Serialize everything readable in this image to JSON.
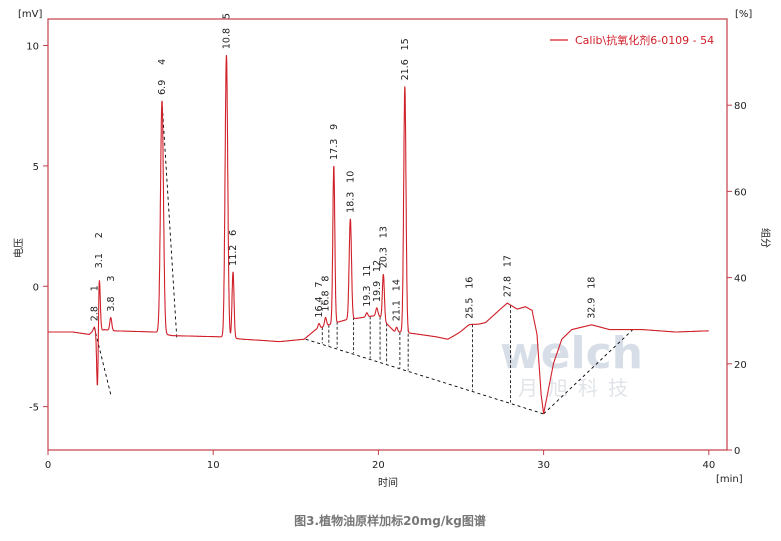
{
  "chart_data": {
    "type": "line",
    "title": "",
    "caption": "图3.植物油原样加标20mg/kg图谱",
    "xlabel": "时间",
    "xunit": "[min]",
    "ylabel": "电压",
    "yunit": "[mV]",
    "y2label": "组分",
    "y2unit": "[%]",
    "xlim": [
      0,
      41.1
    ],
    "ylim": [
      -6.8,
      11.1
    ],
    "y2lim": [
      0,
      100
    ],
    "xticks": [
      0,
      10,
      20,
      30,
      40
    ],
    "yticks": [
      -5,
      0,
      5,
      10
    ],
    "y2ticks": [
      0,
      20,
      40,
      60,
      80
    ],
    "grid": false,
    "legend": {
      "position": "top-right",
      "entries": [
        "Calib\\抗氧化剂6-0109 - 54"
      ]
    },
    "colors": {
      "trace": "#d0202a",
      "axis": "#c0404a",
      "baseline": "#000000"
    },
    "series": [
      {
        "name": "Calib\\抗氧化剂6-0109 - 54",
        "baseline_points": [
          [
            0,
            -1.9
          ],
          [
            1.5,
            -1.9
          ],
          [
            2.5,
            -2.0
          ],
          [
            2.8,
            -1.8
          ],
          [
            2.95,
            -1.9
          ],
          [
            3.4,
            -1.8
          ],
          [
            4,
            -1.85
          ],
          [
            6.5,
            -1.9
          ],
          [
            7.5,
            -2.05
          ],
          [
            10.5,
            -2.1
          ],
          [
            11.8,
            -2.2
          ],
          [
            13,
            -2.25
          ],
          [
            14,
            -2.3
          ],
          [
            15.5,
            -2.2
          ],
          [
            16.2,
            -1.8
          ],
          [
            17.0,
            -1.6
          ],
          [
            18.0,
            -1.4
          ],
          [
            19.0,
            -1.3
          ],
          [
            20.0,
            -1.2
          ],
          [
            21.0,
            -1.9
          ],
          [
            21.4,
            -1.9
          ],
          [
            22.5,
            -2.0
          ],
          [
            23.5,
            -2.1
          ],
          [
            24.2,
            -2.2
          ],
          [
            25.5,
            -1.7
          ],
          [
            26.5,
            -1.5
          ],
          [
            27.3,
            -1.0
          ],
          [
            27.8,
            -0.7
          ],
          [
            28.4,
            -0.95
          ],
          [
            28.9,
            -0.85
          ],
          [
            29.3,
            -1.0
          ],
          [
            29.6,
            -2.0
          ],
          [
            29.85,
            -4.5
          ],
          [
            30.0,
            -5.3
          ],
          [
            30.2,
            -4.6
          ],
          [
            30.6,
            -3.2
          ],
          [
            31.1,
            -2.2
          ],
          [
            31.7,
            -1.8
          ],
          [
            32.9,
            -1.6
          ],
          [
            34,
            -1.8
          ],
          [
            36,
            -1.8
          ],
          [
            38,
            -1.9
          ],
          [
            40,
            -1.85
          ]
        ]
      }
    ],
    "peaks": [
      {
        "no": "1",
        "rt": 2.8,
        "apex": -1.7,
        "show_rt": "2.8"
      },
      {
        "no": "2",
        "rt": 3.1,
        "apex": 0.5,
        "show_rt": "3.1"
      },
      {
        "no": "3",
        "rt": 3.8,
        "apex": -1.3,
        "show_rt": "3.8"
      },
      {
        "no": "4",
        "rt": 6.9,
        "apex": 7.7,
        "show_rt": "6.9"
      },
      {
        "no": "5",
        "rt": 10.8,
        "apex": 9.6,
        "show_rt": "10.8"
      },
      {
        "no": "6",
        "rt": 11.2,
        "apex": 0.6,
        "show_rt": "11.2"
      },
      {
        "no": "7",
        "rt": 16.4,
        "apex": -1.55,
        "show_rt": "16.4"
      },
      {
        "no": "8",
        "rt": 16.8,
        "apex": -1.3,
        "show_rt": "16.8"
      },
      {
        "no": "9",
        "rt": 17.3,
        "apex": 5.0,
        "show_rt": "17.3"
      },
      {
        "no": "10",
        "rt": 18.3,
        "apex": 2.8,
        "show_rt": "18.3"
      },
      {
        "no": "11",
        "rt": 19.3,
        "apex": -1.1,
        "show_rt": "19.3"
      },
      {
        "no": "12",
        "rt": 19.9,
        "apex": -0.9,
        "show_rt": "19.9"
      },
      {
        "no": "13",
        "rt": 20.3,
        "apex": 0.5,
        "show_rt": "20.3"
      },
      {
        "no": "14",
        "rt": 21.1,
        "apex": -1.7,
        "show_rt": "21.1"
      },
      {
        "no": "15",
        "rt": 21.6,
        "apex": 8.3,
        "show_rt": "21.6"
      },
      {
        "no": "16",
        "rt": 25.5,
        "apex": -1.6,
        "show_rt": "25.5"
      },
      {
        "no": "17",
        "rt": 27.8,
        "apex": -0.7,
        "show_rt": "27.8"
      },
      {
        "no": "18",
        "rt": 32.9,
        "apex": -1.6,
        "show_rt": "32.9"
      }
    ],
    "negative_dip": {
      "rt": 3.0,
      "min": -4.6
    }
  },
  "watermark": {
    "logo": "welch",
    "text": "月旭科技"
  }
}
